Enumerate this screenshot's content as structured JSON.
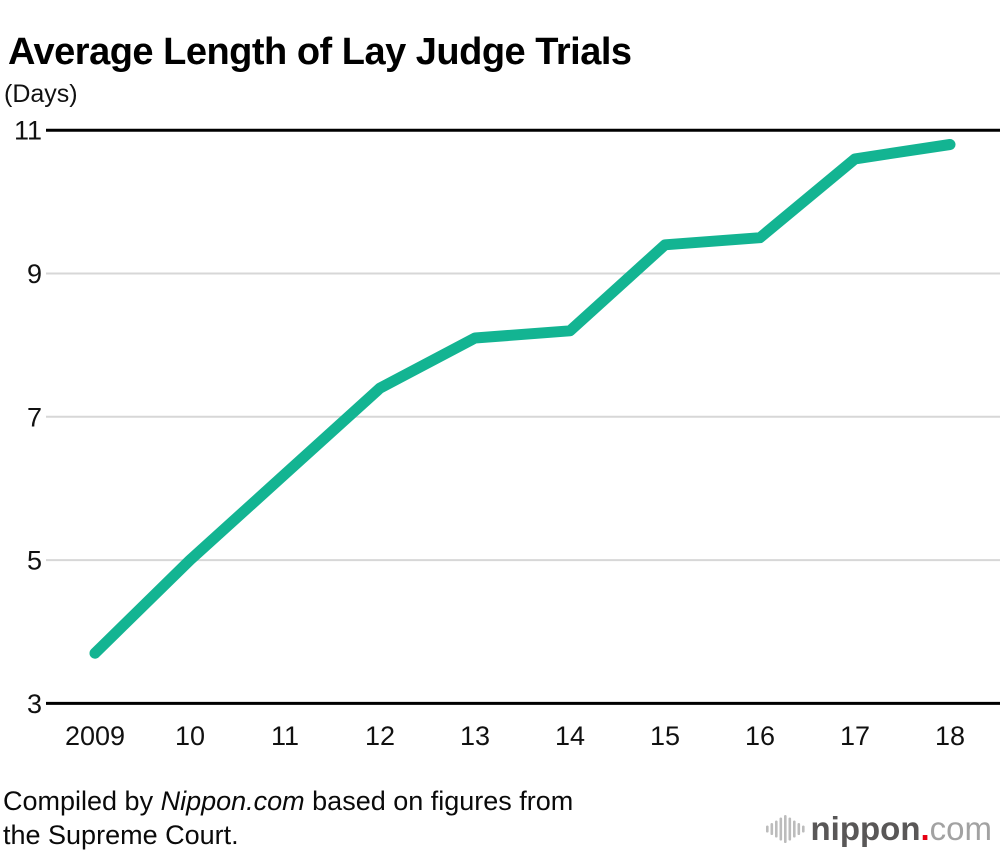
{
  "title": "Average Length of Lay Judge Trials",
  "unit_label": "(Days)",
  "chart_data": {
    "type": "line",
    "title": "Average Length of Lay Judge Trials",
    "ylabel": "(Days)",
    "categories": [
      "2009",
      "10",
      "11",
      "12",
      "13",
      "14",
      "15",
      "16",
      "17",
      "18"
    ],
    "values": [
      3.7,
      5.0,
      6.2,
      7.4,
      8.1,
      8.2,
      9.4,
      9.5,
      10.6,
      10.8
    ],
    "ylim": [
      3,
      11
    ],
    "yticks": [
      3,
      5,
      7,
      9,
      11
    ],
    "grid": "horizontal",
    "legend": "none",
    "line_color": "#13b492",
    "grid_color": "#d7d7d7",
    "axis_color": "#000000",
    "tick_color": "#111111"
  },
  "caption": {
    "line1_pre": "Compiled by ",
    "line1_source": "Nippon.com",
    "line1_post": " based on figures from",
    "line2": "the Supreme Court."
  },
  "logo": {
    "icon": "soundwave-bars-icon",
    "name": "nippon",
    "dot": ".",
    "tld": "com",
    "bar_color": "#bcbcbc",
    "name_color": "#595757",
    "dot_color": "#e60012",
    "tld_color": "#a2a2a2"
  }
}
